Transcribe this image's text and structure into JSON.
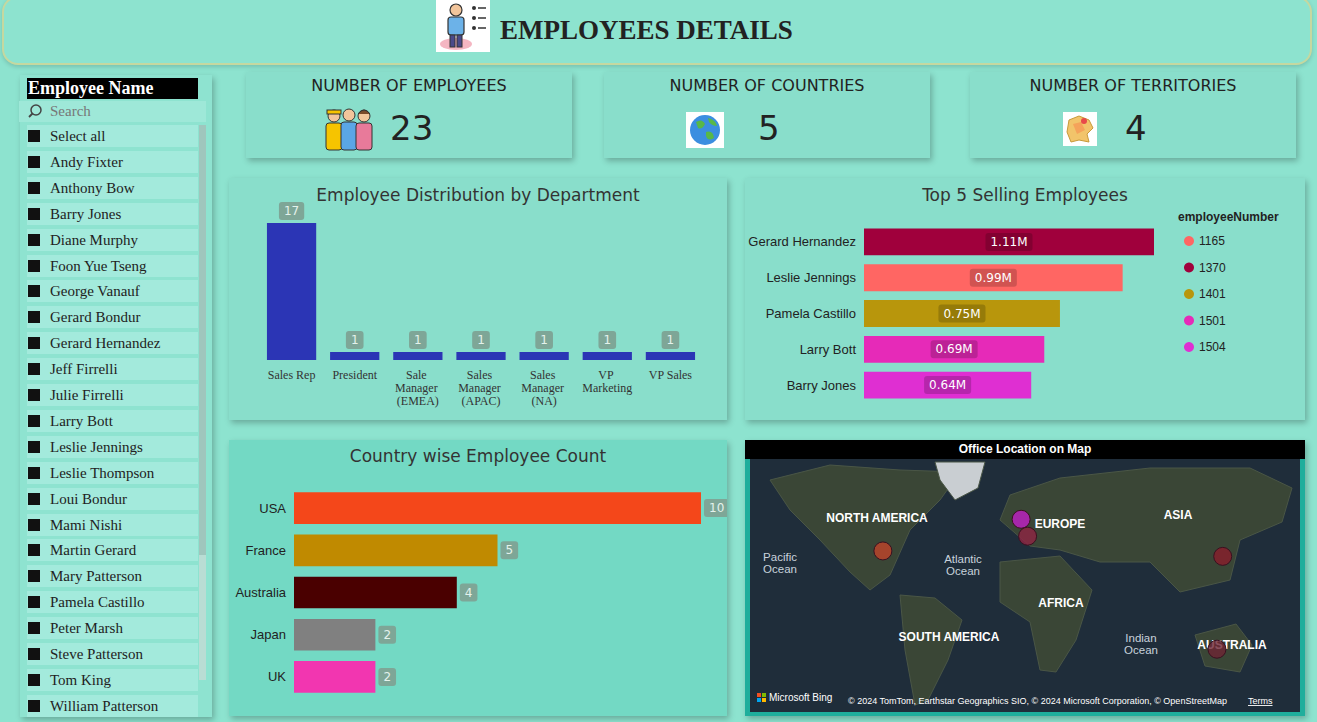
{
  "header": {
    "title": "EMPLOYEES DETAILS"
  },
  "slicer": {
    "title": "Employee Name",
    "placeholder": "Search",
    "items": [
      "Select all",
      "Andy Fixter",
      "Anthony Bow",
      "Barry Jones",
      "Diane Murphy",
      "Foon Yue Tseng",
      "George Vanauf",
      "Gerard Bondur",
      "Gerard Hernandez",
      "Jeff Firrelli",
      "Julie Firrelli",
      "Larry Bott",
      "Leslie Jennings",
      "Leslie Thompson",
      "Loui Bondur",
      "Mami Nishi",
      "Martin Gerard",
      "Mary Patterson",
      "Pamela Castillo",
      "Peter Marsh",
      "Steve Patterson",
      "Tom King",
      "William Patterson"
    ]
  },
  "kpis": [
    {
      "title": "NUMBER OF EMPLOYEES",
      "value": 23
    },
    {
      "title": "NUMBER OF COUNTRIES",
      "value": 5
    },
    {
      "title": "NUMBER OF TERRITORIES",
      "value": 4
    }
  ],
  "chart_data": [
    {
      "type": "bar",
      "title": "Employee Distribution by Department",
      "categories": [
        "Sales Rep",
        "President",
        "Sale Manager (EMEA)",
        "Sales Manager (APAC)",
        "Sales Manager (NA)",
        "VP Marketing",
        "VP Sales"
      ],
      "values": [
        17,
        1,
        1,
        1,
        1,
        1,
        1
      ],
      "color": "#2b35b5",
      "ylim": [
        0,
        17
      ],
      "grid": false,
      "data_labels": true,
      "tick_labels": "x"
    },
    {
      "type": "bar",
      "orientation": "horizontal",
      "title": "Top 5 Selling Employees",
      "categories": [
        "Gerard Hernandez",
        "Leslie Jennings",
        "Pamela Castillo",
        "Larry Bott",
        "Barry Jones"
      ],
      "series": [
        {
          "name": "1165",
          "color": "#ff6663",
          "values": [
            null,
            990000,
            null,
            null,
            null
          ],
          "value_labels": [
            null,
            "0.99M",
            null,
            null,
            null
          ]
        },
        {
          "name": "1370",
          "color": "#a0003c",
          "values": [
            1110000,
            null,
            null,
            null,
            null
          ],
          "value_labels": [
            "1.11M",
            null,
            null,
            null,
            null
          ]
        },
        {
          "name": "1401",
          "color": "#b8960c",
          "values": [
            null,
            null,
            750000,
            null,
            null
          ],
          "value_labels": [
            null,
            null,
            "0.75M",
            null,
            null
          ]
        },
        {
          "name": "1501",
          "color": "#e62ab8",
          "values": [
            null,
            null,
            null,
            690000,
            null
          ],
          "value_labels": [
            null,
            null,
            null,
            "0.69M",
            null
          ]
        },
        {
          "name": "1504",
          "color": "#df2fd2",
          "values": [
            null,
            null,
            null,
            null,
            640000
          ],
          "value_labels": [
            null,
            null,
            null,
            null,
            "0.64M"
          ]
        }
      ],
      "xlim": [
        0,
        1110000
      ],
      "legend": "top-right",
      "legend_title": "employeeNumber",
      "grid": false,
      "data_labels": true,
      "tick_labels": "y"
    },
    {
      "type": "bar",
      "orientation": "horizontal",
      "title": "Country wise Employee Count",
      "categories": [
        "USA",
        "France",
        "Australia",
        "Japan",
        "UK"
      ],
      "values": [
        10,
        5,
        4,
        2,
        2
      ],
      "colors": [
        "#f4471a",
        "#c08a00",
        "#4a0000",
        "#808080",
        "#f236b0"
      ],
      "xlim": [
        0,
        10
      ],
      "grid": false,
      "data_labels": true,
      "tick_labels": "y"
    }
  ],
  "map": {
    "title": "Office Location on Map",
    "labels": [
      "NORTH AMERICA",
      "EUROPE",
      "ASIA",
      "Pacific Ocean",
      "Atlantic Ocean",
      "AFRICA",
      "SOUTH AMERICA",
      "Indian Ocean",
      "AUSTRALIA"
    ],
    "markers": [
      {
        "lon": -98,
        "lat": 39,
        "color": "#c0442b"
      },
      {
        "lon": -2,
        "lat": 54,
        "color": "#c21fc8"
      },
      {
        "lon": 2.5,
        "lat": 46.5,
        "color": "#8f2444"
      },
      {
        "lon": 138,
        "lat": 36,
        "color": "#8a1d2c"
      },
      {
        "lon": 134,
        "lat": -25,
        "color": "#6e2434"
      }
    ],
    "logo": "Microsoft Bing",
    "copyright": "© 2024 TomTom, Earthstar Geographics SIO, © 2024 Microsoft Corporation, © OpenStreetMap",
    "terms": "Terms"
  }
}
